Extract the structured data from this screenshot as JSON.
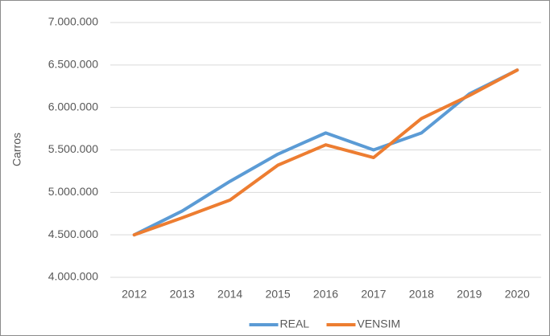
{
  "chart_data": {
    "type": "line",
    "y_label": "Carros",
    "categories": [
      "2012",
      "2013",
      "2014",
      "2015",
      "2016",
      "2017",
      "2018",
      "2019",
      "2020"
    ],
    "series": [
      {
        "name": "REAL",
        "color": "#5b9bd5",
        "values": [
          4500000,
          4780000,
          5130000,
          5450000,
          5700000,
          5500000,
          5700000,
          6160000,
          6440000
        ]
      },
      {
        "name": "VENSIM",
        "color": "#ed7d31",
        "values": [
          4500000,
          4700000,
          4910000,
          5320000,
          5560000,
          5410000,
          5870000,
          6140000,
          6440000
        ]
      }
    ],
    "ylim": [
      4000000,
      7000000
    ],
    "yticks": [
      {
        "value": 4000000,
        "label": "4.000.000"
      },
      {
        "value": 4500000,
        "label": "4.500.000"
      },
      {
        "value": 5000000,
        "label": "5.000.000"
      },
      {
        "value": 5500000,
        "label": "5.500.000"
      },
      {
        "value": 6000000,
        "label": "6.000.000"
      },
      {
        "value": 6500000,
        "label": "6.500.000"
      },
      {
        "value": 7000000,
        "label": "7.000.000"
      }
    ],
    "grid": true,
    "legend": "bottom"
  }
}
